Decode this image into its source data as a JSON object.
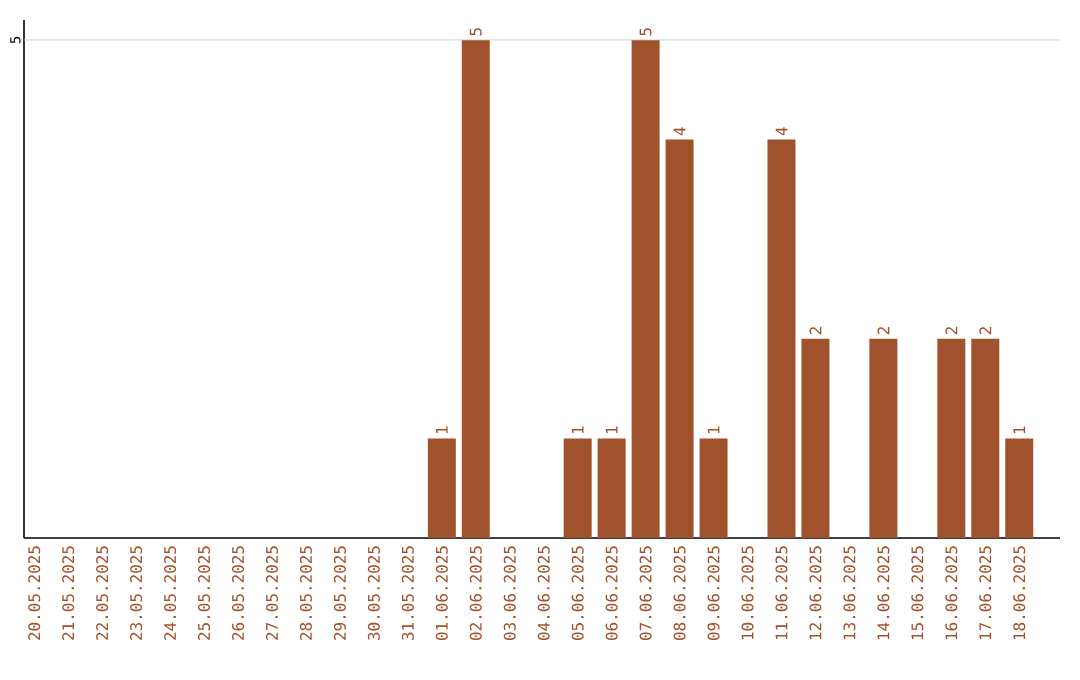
{
  "chart_data": {
    "type": "bar",
    "categories": [
      "20.05.2025",
      "21.05.2025",
      "22.05.2025",
      "23.05.2025",
      "24.05.2025",
      "25.05.2025",
      "26.05.2025",
      "27.05.2025",
      "28.05.2025",
      "29.05.2025",
      "30.05.2025",
      "31.05.2025",
      "01.06.2025",
      "02.06.2025",
      "03.06.2025",
      "04.06.2025",
      "05.06.2025",
      "06.06.2025",
      "07.06.2025",
      "08.06.2025",
      "09.06.2025",
      "10.06.2025",
      "11.06.2025",
      "12.06.2025",
      "13.06.2025",
      "14.06.2025",
      "15.06.2025",
      "16.06.2025",
      "17.06.2025",
      "18.06.2025"
    ],
    "values": [
      null,
      null,
      null,
      null,
      null,
      null,
      null,
      null,
      null,
      null,
      null,
      null,
      1,
      5,
      null,
      null,
      1,
      1,
      5,
      4,
      1,
      null,
      4,
      2,
      null,
      2,
      null,
      2,
      2,
      1
    ],
    "data_labels": true,
    "color": "#a0522d",
    "ylim": [
      0,
      5.2
    ],
    "ref_lines": [
      {
        "axis": "y",
        "value": 5,
        "label": "5",
        "color": "#c8c8c8"
      }
    ]
  }
}
